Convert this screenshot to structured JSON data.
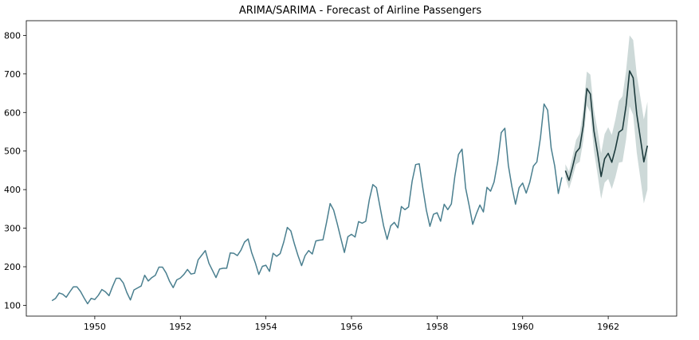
{
  "chart_data": {
    "type": "line",
    "title": "ARIMA/SARIMA - Forecast of Airline Passengers",
    "xlabel": "",
    "ylabel": "",
    "xlim": [
      1948.4,
      1963.6
    ],
    "ylim": [
      72,
      838
    ],
    "x_ticks": [
      1950,
      1952,
      1954,
      1956,
      1958,
      1960,
      1962
    ],
    "y_ticks": [
      100,
      200,
      300,
      400,
      500,
      600,
      700,
      800
    ],
    "grid": false,
    "legend": "none",
    "colors": {
      "observed": "#4a7f8f",
      "forecast": "#1d3b3d",
      "confidence": "#cdd9d8"
    },
    "series": [
      {
        "role": "observed",
        "start": 1949.0,
        "step": 0.0833333,
        "values": [
          112,
          118,
          132,
          129,
          121,
          135,
          148,
          148,
          136,
          119,
          104,
          118,
          115,
          126,
          141,
          135,
          125,
          149,
          170,
          170,
          158,
          133,
          114,
          140,
          145,
          150,
          178,
          163,
          172,
          178,
          199,
          199,
          184,
          162,
          146,
          166,
          171,
          180,
          193,
          181,
          183,
          218,
          230,
          242,
          209,
          191,
          172,
          194,
          196,
          196,
          236,
          235,
          229,
          243,
          264,
          272,
          237,
          211,
          180,
          201,
          204,
          188,
          235,
          227,
          234,
          264,
          302,
          293,
          259,
          229,
          203,
          229,
          242,
          233,
          267,
          269,
          270,
          315,
          364,
          347,
          312,
          274,
          237,
          278,
          284,
          277,
          317,
          313,
          318,
          374,
          413,
          405,
          355,
          306,
          271,
          306,
          315,
          301,
          356,
          348,
          355,
          422,
          465,
          467,
          404,
          347,
          305,
          336,
          340,
          318,
          362,
          348,
          363,
          435,
          491,
          505,
          404,
          359,
          310,
          337,
          360,
          342,
          406,
          396,
          420,
          472,
          548,
          559,
          463,
          407,
          362,
          405,
          417,
          391,
          419,
          461,
          472,
          535,
          622,
          606,
          508,
          461,
          390,
          432
        ]
      },
      {
        "role": "forecast",
        "start": 1961.0,
        "step": 0.0833333,
        "values": [
          449,
          424,
          459,
          497,
          508,
          566,
          662,
          648,
          552,
          496,
          434,
          480,
          494,
          471,
          506,
          549,
          556,
          618,
          708,
          690,
          596,
          534,
          472,
          514
        ]
      },
      {
        "role": "confidence-band",
        "start": 1961.0,
        "step": 0.0833333,
        "lower": [
          432,
          402,
          432,
          466,
          472,
          526,
          618,
          600,
          500,
          440,
          376,
          418,
          428,
          402,
          432,
          470,
          472,
          530,
          616,
          594,
          496,
          430,
          364,
          400
        ],
        "upper": [
          466,
          447,
          487,
          529,
          545,
          607,
          706,
          698,
          606,
          554,
          494,
          544,
          562,
          542,
          582,
          630,
          642,
          708,
          800,
          788,
          698,
          640,
          582,
          628
        ]
      }
    ]
  }
}
